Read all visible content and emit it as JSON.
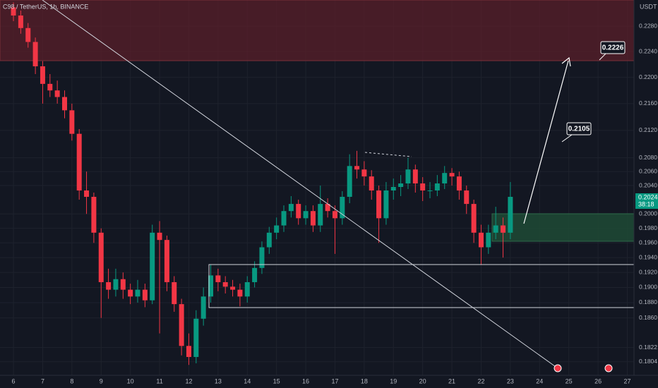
{
  "chart_data": {
    "type": "candlestick",
    "title": "C98 / TetherUS, 1h, BINANCE",
    "currency": "USDT",
    "price_tag": "0.2024",
    "countdown": "38:18",
    "annotations": [
      "0.2105",
      "0.2226"
    ],
    "log_scale": true,
    "grid": true,
    "up_color": "#089981",
    "down_color": "#f23645",
    "xlim": [
      5.54,
      27.23
    ],
    "xticks": [
      6,
      7,
      8,
      9,
      10,
      11,
      12,
      13,
      14,
      15,
      16,
      17,
      18,
      19,
      20,
      21,
      22,
      23,
      24,
      25,
      26,
      27
    ],
    "ylim": [
      0.1787,
      0.2322
    ],
    "yticks": [
      {
        "value": 0.228,
        "label": "0.2280"
      },
      {
        "value": 0.224,
        "label": "0.2240"
      },
      {
        "value": 0.22,
        "label": "0.2200"
      },
      {
        "value": 0.216,
        "label": "0.2160"
      },
      {
        "value": 0.212,
        "label": "0.2120"
      },
      {
        "value": 0.208,
        "label": "0.2080"
      },
      {
        "value": 0.206,
        "label": "0.2060"
      },
      {
        "value": 0.204,
        "label": "0.2040"
      },
      {
        "value": 0.2,
        "label": "0.2000"
      },
      {
        "value": 0.198,
        "label": "0.1980"
      },
      {
        "value": 0.196,
        "label": "0.1960"
      },
      {
        "value": 0.194,
        "label": "0.1940"
      },
      {
        "value": 0.192,
        "label": "0.1920"
      },
      {
        "value": 0.19,
        "label": "0.1900"
      },
      {
        "value": 0.188,
        "label": "0.1880"
      },
      {
        "value": 0.186,
        "label": "0.1860"
      },
      {
        "value": 0.1822,
        "label": "0.1822"
      },
      {
        "value": 0.1804,
        "label": "0.1804"
      }
    ],
    "x": [
      6,
      6.25,
      6.5,
      6.75,
      7,
      7.25,
      7.5,
      7.75,
      8,
      8.25,
      8.5,
      8.75,
      9,
      9.25,
      9.5,
      9.75,
      10,
      10.25,
      10.5,
      10.75,
      11,
      11.25,
      11.5,
      11.75,
      12,
      12.25,
      12.5,
      12.75,
      13,
      13.25,
      13.5,
      13.75,
      14,
      14.25,
      14.5,
      14.75,
      15,
      15.25,
      15.5,
      15.75,
      16,
      16.25,
      16.5,
      16.75,
      17,
      17.25,
      17.5,
      17.75,
      18,
      18.25,
      18.5,
      18.75,
      19,
      19.25,
      19.5,
      19.75,
      20,
      20.25,
      20.5,
      20.75,
      21,
      21.25,
      21.5,
      21.75,
      22,
      22.25,
      22.5,
      22.75,
      23
    ],
    "open": [
      0.231,
      0.2297,
      0.2277,
      0.2255,
      0.2217,
      0.219,
      0.218,
      0.217,
      0.215,
      0.2115,
      0.2033,
      0.2024,
      0.1974,
      0.1907,
      0.1897,
      0.1911,
      0.1897,
      0.1888,
      0.1897,
      0.1883,
      0.1974,
      0.1964,
      0.1907,
      0.1878,
      0.1824,
      0.181,
      0.1859,
      0.1888,
      0.1916,
      0.1907,
      0.1901,
      0.1897,
      0.1888,
      0.1907,
      0.1926,
      0.1954,
      0.1974,
      0.1984,
      0.2004,
      0.2014,
      0.1994,
      0.2004,
      0.1984,
      0.2014,
      0.2004,
      0.1994,
      0.2024,
      0.2068,
      0.2063,
      0.2053,
      0.2033,
      0.1994,
      0.2033,
      0.2038,
      0.2043,
      0.2063,
      0.2043,
      0.2033,
      0.2033,
      0.2043,
      0.2058,
      0.2053,
      0.2033,
      0.2014,
      0.1974,
      0.1954,
      0.1974,
      0.1984,
      0.1974
    ],
    "high": [
      0.2318,
      0.2305,
      0.2285,
      0.2262,
      0.2225,
      0.2205,
      0.2195,
      0.218,
      0.216,
      0.2122,
      0.206,
      0.203,
      0.198,
      0.1925,
      0.1925,
      0.192,
      0.1905,
      0.191,
      0.1905,
      0.1985,
      0.199,
      0.197,
      0.1915,
      0.1885,
      0.184,
      0.187,
      0.19,
      0.193,
      0.1925,
      0.1915,
      0.191,
      0.1905,
      0.1915,
      0.1935,
      0.1962,
      0.1982,
      0.1995,
      0.2012,
      0.2025,
      0.202,
      0.2012,
      0.2012,
      0.204,
      0.2022,
      0.2012,
      0.2032,
      0.2085,
      0.209,
      0.2075,
      0.2062,
      0.204,
      0.2045,
      0.205,
      0.2055,
      0.208,
      0.207,
      0.2052,
      0.2045,
      0.2055,
      0.2068,
      0.2065,
      0.206,
      0.204,
      0.202,
      0.1985,
      0.1985,
      0.201,
      0.1995,
      0.2045
    ],
    "low": [
      0.2288,
      0.2268,
      0.2246,
      0.2205,
      0.216,
      0.217,
      0.216,
      0.2138,
      0.2105,
      0.202,
      0.2,
      0.196,
      0.186,
      0.1885,
      0.1888,
      0.1885,
      0.1878,
      0.188,
      0.1874,
      0.1878,
      0.184,
      0.1895,
      0.1868,
      0.1812,
      0.18,
      0.1802,
      0.185,
      0.188,
      0.1895,
      0.1892,
      0.1888,
      0.1875,
      0.188,
      0.19,
      0.1918,
      0.1945,
      0.1965,
      0.1975,
      0.1995,
      0.1985,
      0.1985,
      0.1975,
      0.1975,
      0.1995,
      0.1945,
      0.1985,
      0.2015,
      0.205,
      0.204,
      0.202,
      0.196,
      0.1985,
      0.202,
      0.2025,
      0.2035,
      0.203,
      0.2018,
      0.2022,
      0.2025,
      0.2035,
      0.204,
      0.202,
      0.2,
      0.196,
      0.193,
      0.1945,
      0.1965,
      0.194,
      0.1965
    ],
    "close": [
      0.2297,
      0.2277,
      0.2255,
      0.2217,
      0.219,
      0.218,
      0.217,
      0.215,
      0.2115,
      0.2033,
      0.2024,
      0.1974,
      0.1907,
      0.1897,
      0.1911,
      0.1897,
      0.1888,
      0.1897,
      0.1883,
      0.1974,
      0.1964,
      0.1907,
      0.1878,
      0.1824,
      0.181,
      0.1859,
      0.1888,
      0.1916,
      0.1907,
      0.1901,
      0.1897,
      0.1888,
      0.1907,
      0.1926,
      0.1954,
      0.1974,
      0.1984,
      0.2004,
      0.2014,
      0.1994,
      0.2004,
      0.1984,
      0.2014,
      0.2004,
      0.1994,
      0.2024,
      0.2068,
      0.2063,
      0.2053,
      0.2033,
      0.1994,
      0.2033,
      0.2038,
      0.2043,
      0.2063,
      0.2043,
      0.2033,
      0.2033,
      0.2043,
      0.2058,
      0.2053,
      0.2033,
      0.2014,
      0.1974,
      0.1954,
      0.1974,
      0.1984,
      0.1974,
      0.2024
    ]
  }
}
